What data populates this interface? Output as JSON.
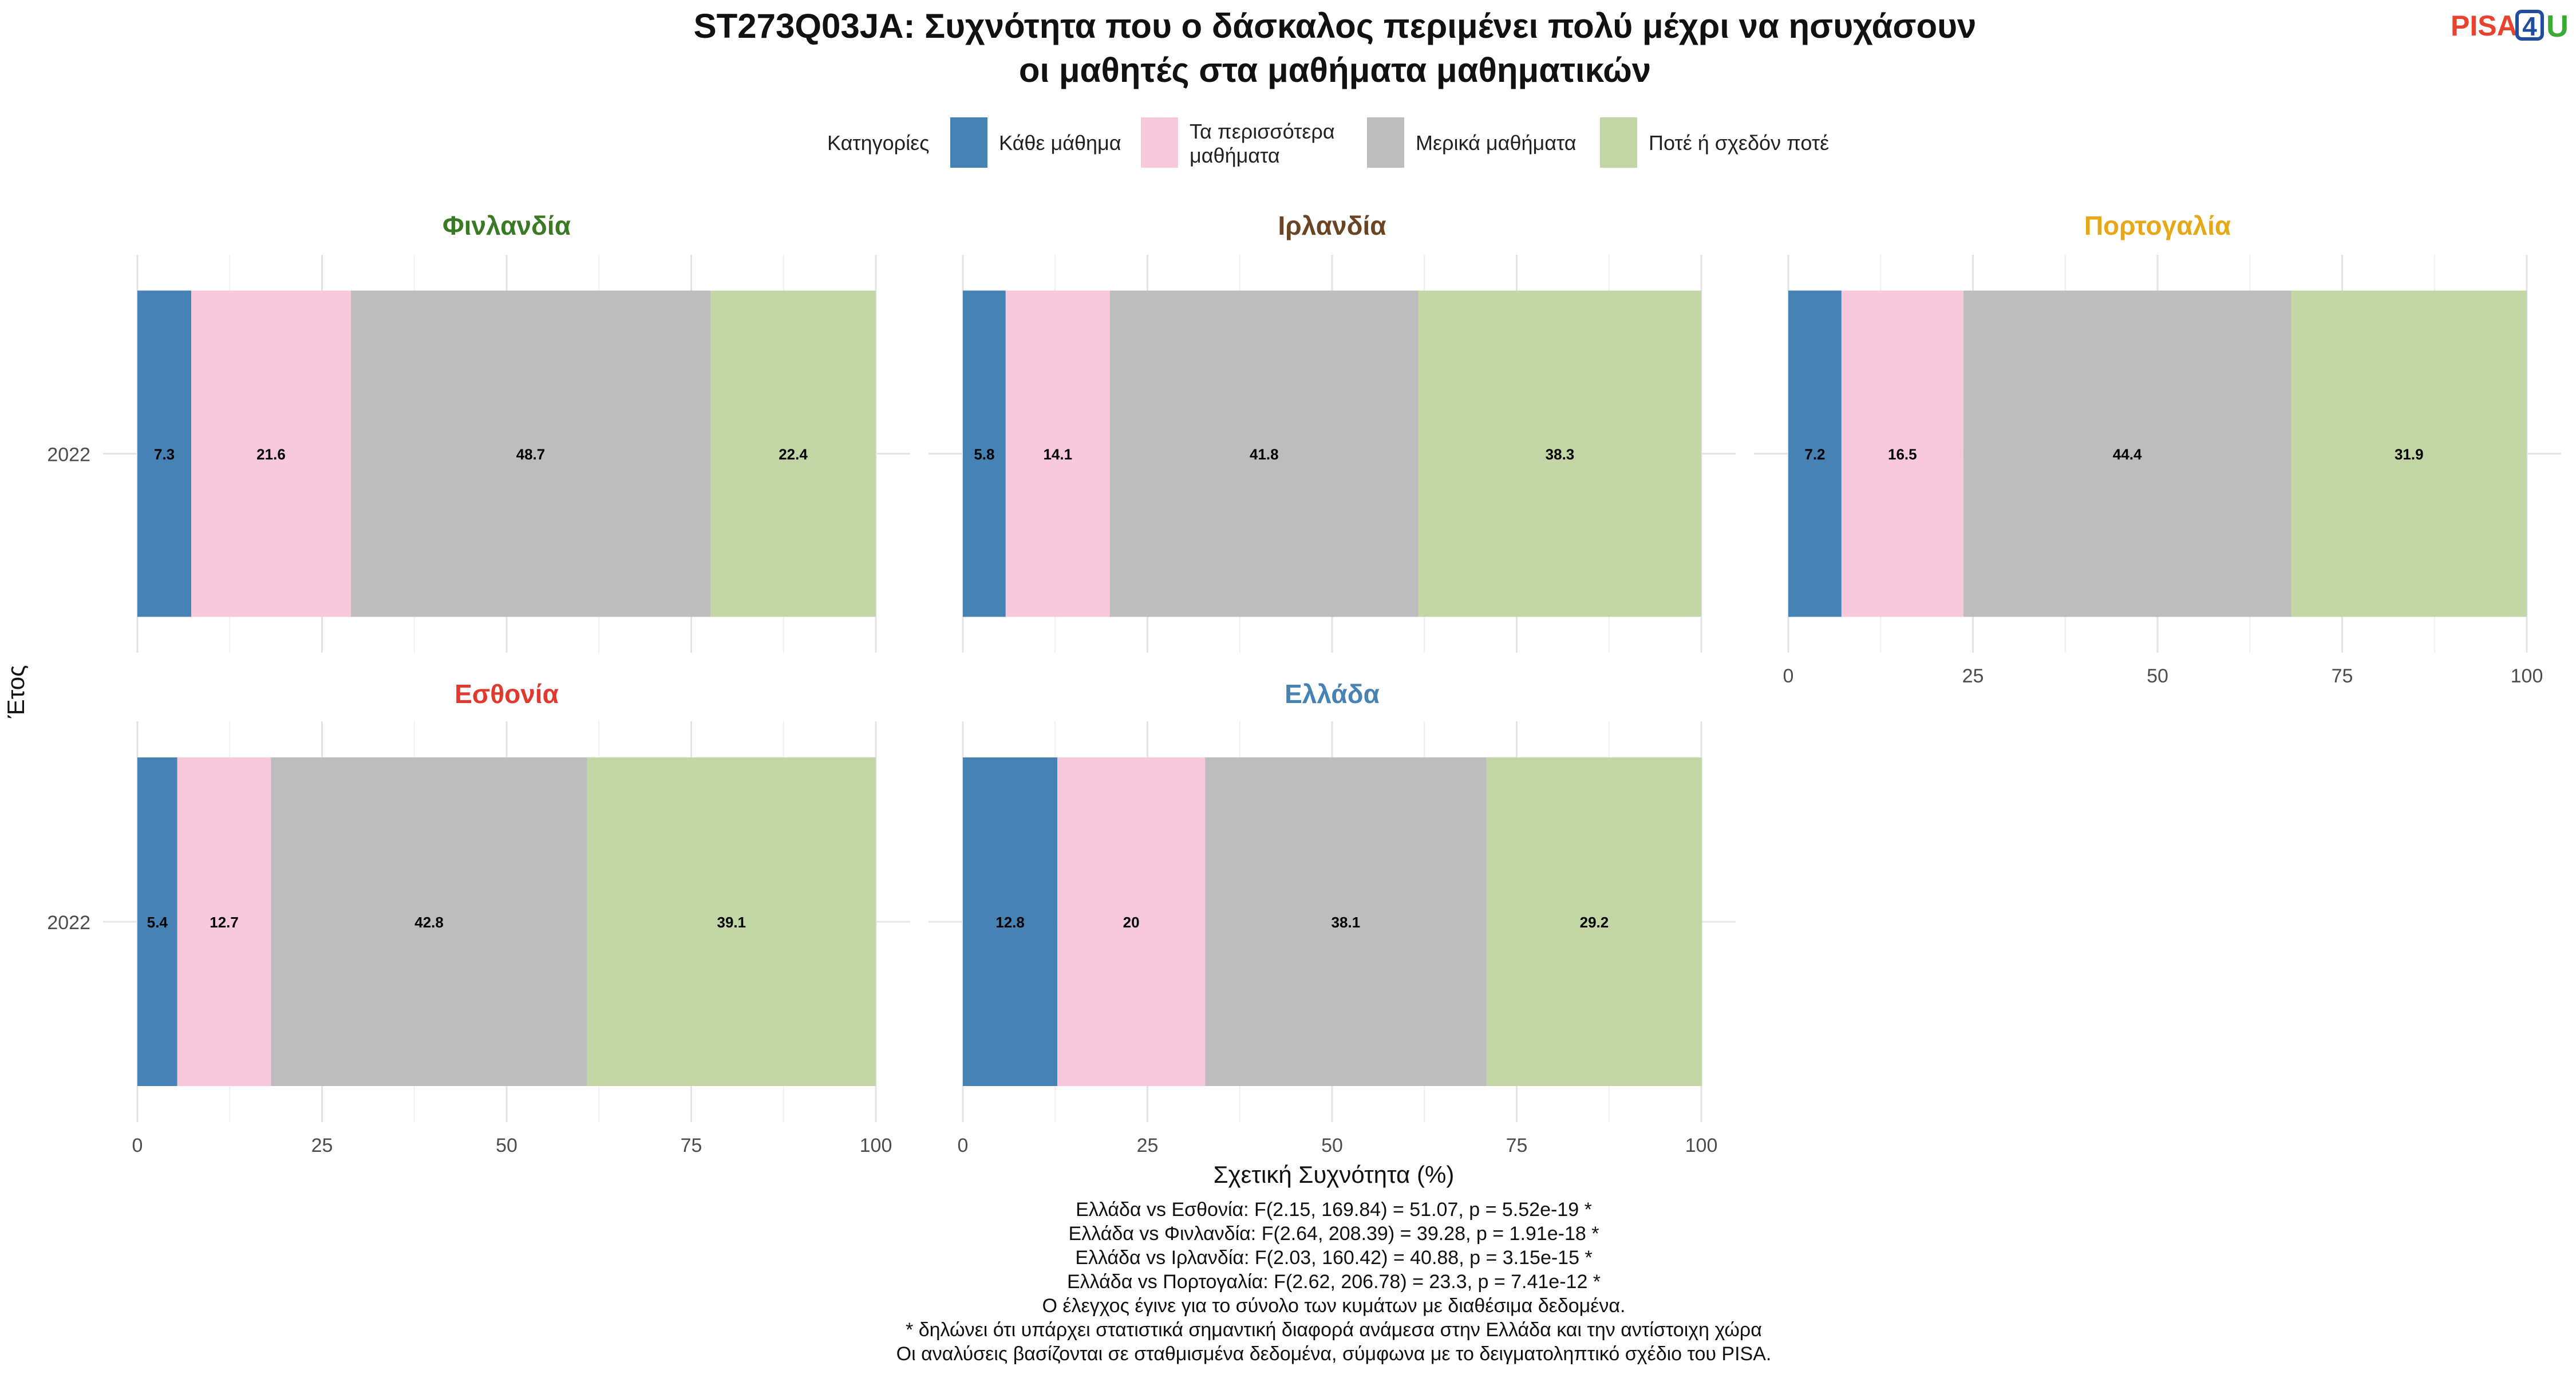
{
  "title_lines": [
    "ST273Q03JA: Συχνότητα που ο δάσκαλος περιμένει πολύ μέχρι να ησυχάσουν",
    "οι μαθητές στα μαθήματα μαθηματικών"
  ],
  "logo": {
    "part1": "PISA",
    "part2": "4",
    "part3": "U",
    "color1": "#e8432f",
    "color2": "#1f4e9c",
    "color3": "#3aaa35"
  },
  "legend": {
    "title": "Κατηγορίες",
    "items": [
      {
        "label_lines": [
          "Κάθε μάθημα"
        ],
        "color": "#4682b4"
      },
      {
        "label_lines": [
          "Τα περισσότερα",
          "μαθήματα"
        ],
        "color": "#f8c8dc"
      },
      {
        "label_lines": [
          "Μερικά μαθήματα"
        ],
        "color": "#bdbdbd"
      },
      {
        "label_lines": [
          "Ποτέ ή σχεδόν ποτέ"
        ],
        "color": "#c2d7a5"
      }
    ]
  },
  "chart_data": {
    "type": "bar",
    "orientation": "horizontal",
    "stacked": true,
    "xlabel": "Σχετική Συχνότητα (%)",
    "ylabel": "Έτος",
    "xlim": [
      0,
      100
    ],
    "xticks": [
      0,
      25,
      50,
      75,
      100
    ],
    "categories": [
      "2022"
    ],
    "series_names": [
      "Κάθε μάθημα",
      "Τα περισσότερα μαθήματα",
      "Μερικά μαθήματα",
      "Ποτέ ή σχεδόν ποτέ"
    ],
    "facets": [
      {
        "country": "Φινλανδία",
        "color": "#3b7a24",
        "year": "2022",
        "values": [
          7.3,
          21.6,
          48.7,
          22.4
        ]
      },
      {
        "country": "Ιρλανδία",
        "color": "#6b4423",
        "year": "2022",
        "values": [
          5.8,
          14.1,
          41.8,
          38.3
        ]
      },
      {
        "country": "Πορτογαλία",
        "color": "#e6a817",
        "year": "2022",
        "values": [
          7.2,
          16.5,
          44.4,
          31.9
        ]
      },
      {
        "country": "Εσθονία",
        "color": "#e03a2f",
        "year": "2022",
        "values": [
          5.4,
          12.7,
          42.8,
          39.1
        ]
      },
      {
        "country": "Ελλάδα",
        "color": "#4682b4",
        "year": "2022",
        "values": [
          12.8,
          20,
          38.1,
          29.2
        ]
      }
    ],
    "grid": true
  },
  "footnotes": [
    "Ελλάδα vs Εσθονία: F(2.15, 169.84) = 51.07, p = 5.52e-19 *",
    "Ελλάδα vs Φινλανδία: F(2.64, 208.39) = 39.28, p = 1.91e-18 *",
    "Ελλάδα vs Ιρλανδία: F(2.03, 160.42) = 40.88, p = 3.15e-15 *",
    "Ελλάδα vs Πορτογαλία: F(2.62, 206.78) = 23.3, p = 7.41e-12 *",
    "Ο έλεγχος έγινε για το σύνολο των κυμάτων με διαθέσιμα δεδομένα.",
    "* δηλώνει ότι υπάρχει στατιστικά σημαντική διαφορά ανάμεσα στην Ελλάδα και την αντίστοιχη χώρα",
    "Οι αναλύσεις βασίζονται σε σταθμισμένα δεδομένα, σύμφωνα με το δειγματοληπτικό σχέδιο του PISA."
  ]
}
